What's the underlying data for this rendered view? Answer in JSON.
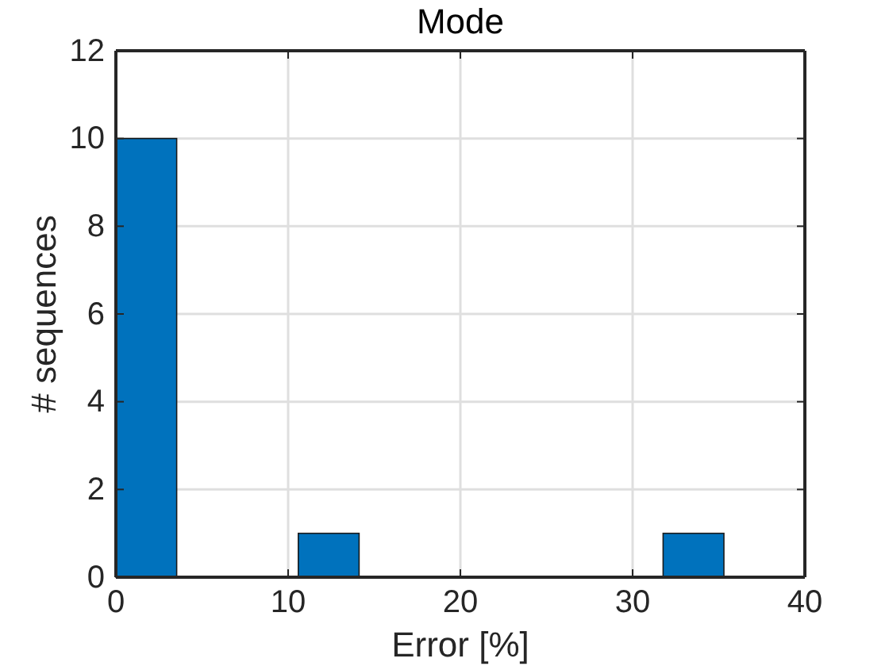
{
  "chart_data": {
    "type": "histogram",
    "title": "Mode",
    "xlabel": "Error [%]",
    "ylabel": "# sequences",
    "bins": [
      0,
      3.53,
      10.59,
      14.12,
      31.77,
      35.3
    ],
    "values": [
      10,
      0,
      1,
      0,
      1
    ],
    "color": "#0072bd",
    "xlim": [
      0,
      40
    ],
    "xticks": [
      0,
      10,
      20,
      30,
      40
    ],
    "ylim": [
      0,
      12
    ],
    "yticks": [
      0,
      2,
      4,
      6,
      8,
      10,
      12
    ],
    "grid": true
  }
}
